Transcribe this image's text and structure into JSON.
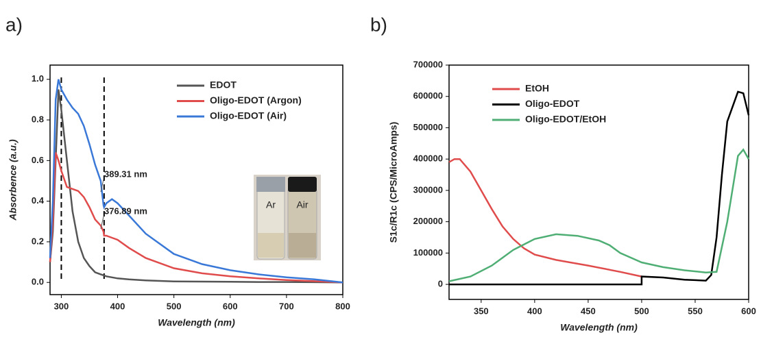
{
  "chart_data": [
    {
      "type": "line",
      "panel_label": "a)",
      "x_label": "Wavelength (nm)",
      "y_label": "Absorbence (a.u.)",
      "x": [
        280,
        285,
        290,
        295,
        300,
        310,
        320,
        330,
        340,
        350,
        360,
        370,
        375,
        376,
        380,
        390,
        400,
        420,
        450,
        500,
        550,
        600,
        650,
        700,
        750,
        800
      ],
      "series": [
        {
          "name": "EDOT",
          "color": "#555555",
          "values": [
            0.1,
            0.25,
            0.6,
            0.95,
            0.85,
            0.6,
            0.35,
            0.2,
            0.12,
            0.08,
            0.05,
            0.04,
            0.035,
            0.034,
            0.03,
            0.025,
            0.02,
            0.015,
            0.01,
            0.005,
            0.004,
            0.003,
            0.002,
            0.002,
            0.001,
            0
          ]
        },
        {
          "name": "Oligo-EDOT (Argon)",
          "color": "#e04b4b",
          "values": [
            0.1,
            0.3,
            0.64,
            0.6,
            0.55,
            0.47,
            0.46,
            0.45,
            0.42,
            0.37,
            0.31,
            0.28,
            0.25,
            0.23,
            0.23,
            0.22,
            0.21,
            0.17,
            0.12,
            0.07,
            0.045,
            0.03,
            0.02,
            0.012,
            0.006,
            0
          ]
        },
        {
          "name": "Oligo-EDOT (Air)",
          "color": "#3a78d8",
          "values": [
            0.12,
            0.4,
            0.9,
            1.0,
            0.95,
            0.9,
            0.86,
            0.83,
            0.77,
            0.68,
            0.58,
            0.5,
            0.38,
            0.37,
            0.39,
            0.41,
            0.39,
            0.33,
            0.24,
            0.14,
            0.09,
            0.06,
            0.04,
            0.025,
            0.015,
            0
          ]
        }
      ],
      "xlim": [
        280,
        800
      ],
      "xticks": [
        300,
        400,
        500,
        600,
        700,
        800
      ],
      "ylim": [
        -0.06,
        1.07
      ],
      "yticks": [
        {
          "value": 0,
          "label": "0.0"
        },
        0.2,
        0.4,
        0.6,
        0.8,
        {
          "value": 1,
          "label": "1.0"
        }
      ],
      "vlines": [
        300,
        376
      ],
      "annotations": [
        "389.31 nm",
        "376.89 nm"
      ],
      "inset_labels": [
        "Ar",
        "Air"
      ],
      "legend": "upper right"
    },
    {
      "type": "line",
      "panel_label": "b)",
      "x_label": "Wavelength (nm)",
      "y_label": "S1c/R1c (CPS/MicroAmps)",
      "series": [
        {
          "name": "EtOH",
          "color": "#e04b4b",
          "x": [
            320,
            325,
            330,
            340,
            350,
            360,
            370,
            380,
            390,
            400,
            420,
            450,
            480,
            500
          ],
          "values": [
            390000,
            400000,
            400000,
            360000,
            300000,
            240000,
            185000,
            145000,
            115000,
            95000,
            78000,
            60000,
            40000,
            25000
          ]
        },
        {
          "name": "Oligo-EDOT",
          "color": "#000000",
          "x": [
            320,
            400,
            500,
            500,
            520,
            540,
            560,
            565,
            570,
            575,
            580,
            590,
            595,
            600
          ],
          "values": [
            0,
            0,
            0,
            25000,
            22000,
            15000,
            12000,
            30000,
            150000,
            350000,
            520000,
            615000,
            610000,
            540000
          ]
        },
        {
          "name": "Oligo-EDOT/EtOH",
          "color": "#4fae74",
          "x": [
            320,
            340,
            360,
            380,
            400,
            420,
            440,
            460,
            470,
            480,
            500,
            520,
            540,
            560,
            570,
            580,
            590,
            595,
            600
          ],
          "values": [
            10000,
            25000,
            60000,
            110000,
            145000,
            160000,
            155000,
            140000,
            125000,
            100000,
            70000,
            55000,
            45000,
            38000,
            40000,
            200000,
            410000,
            430000,
            400000
          ]
        }
      ],
      "xlim": [
        320,
        600
      ],
      "xticks": [
        350,
        400,
        450,
        500,
        550,
        600
      ],
      "ylim": [
        -48000,
        700000
      ],
      "yticks": [
        0,
        100000,
        200000,
        300000,
        400000,
        500000,
        600000,
        700000
      ],
      "legend": "upper left"
    }
  ]
}
